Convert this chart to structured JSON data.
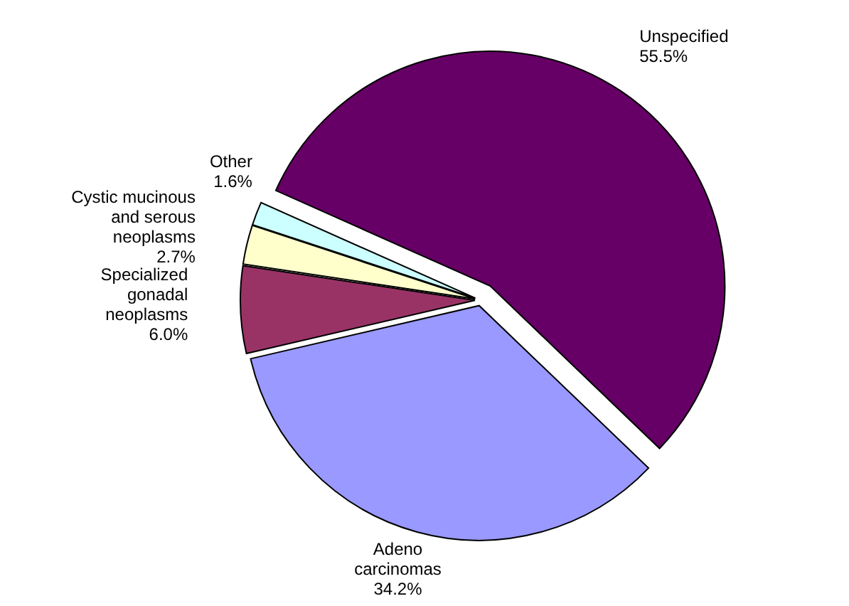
{
  "chart_data": {
    "type": "pie",
    "categories": [
      "Unspecified",
      "Adeno carcinomas",
      "Specialized gonadal neoplasms",
      "Cystic mucinous and serous neoplasms",
      "Other"
    ],
    "values": [
      55.5,
      34.2,
      6.0,
      2.7,
      1.6
    ],
    "value_labels": [
      "55.5%",
      "34.2%",
      "6.0%",
      "2.7%",
      "1.6%"
    ],
    "colors": [
      "#660066",
      "#9999ff",
      "#993366",
      "#ffffcc",
      "#ccffff"
    ],
    "legend": false
  }
}
